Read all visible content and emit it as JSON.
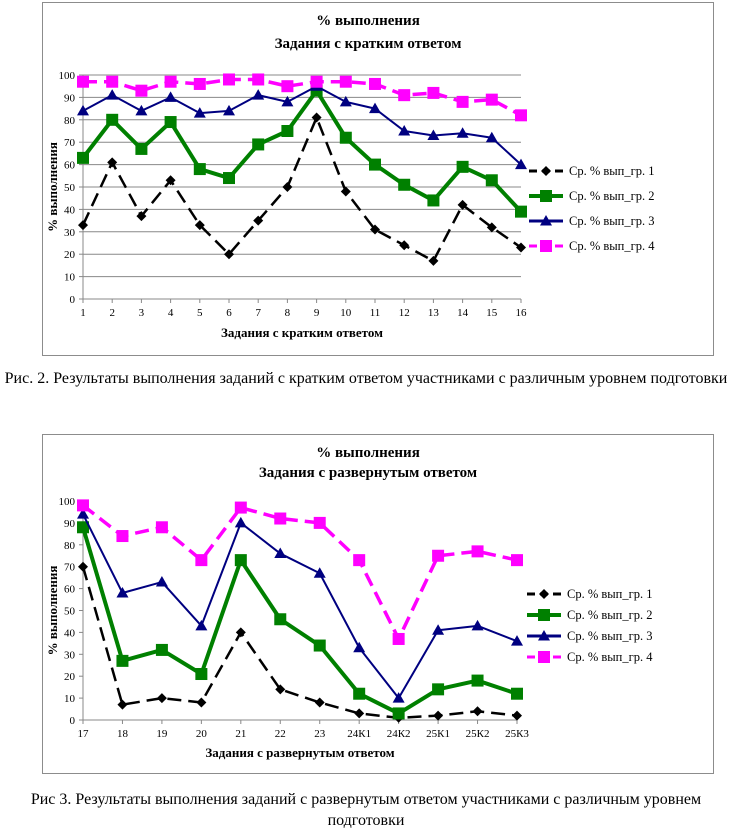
{
  "chart_data": [
    {
      "type": "line",
      "title": "% выполнения",
      "subtitle": "Задания с кратким ответом",
      "xlabel": "Задания с кратким ответом",
      "ylabel": "% выполнения",
      "ylim": [
        0,
        100
      ],
      "yticks": [
        "0",
        "10",
        "20",
        "30",
        "40",
        "50",
        "60",
        "70",
        "80",
        "90",
        "100"
      ],
      "categories": [
        "1",
        "2",
        "3",
        "4",
        "5",
        "6",
        "7",
        "8",
        "9",
        "10",
        "11",
        "12",
        "13",
        "14",
        "15",
        "16"
      ],
      "grid": true,
      "legend_position": "right",
      "series": [
        {
          "name": "Ср. % вып_гр. 1",
          "color": "#000000",
          "marker": "diamond",
          "dash": true,
          "values": [
            33,
            61,
            37,
            53,
            33,
            20,
            35,
            50,
            81,
            48,
            31,
            24,
            17,
            42,
            32,
            23
          ]
        },
        {
          "name": "Ср. % вып_гр. 2",
          "color": "#008000",
          "marker": "square",
          "dash": false,
          "values": [
            63,
            80,
            67,
            79,
            58,
            54,
            69,
            75,
            93,
            72,
            60,
            51,
            44,
            59,
            53,
            39
          ]
        },
        {
          "name": "Ср. % вып_гр. 3",
          "color": "#000080",
          "marker": "triangle",
          "dash": false,
          "values": [
            84,
            91,
            84,
            90,
            83,
            84,
            91,
            88,
            95,
            88,
            85,
            75,
            73,
            74,
            72,
            60
          ]
        },
        {
          "name": "Ср. % вып_гр. 4",
          "color": "#FF00FF",
          "marker": "square",
          "dash": true,
          "values": [
            97,
            97,
            93,
            97,
            96,
            98,
            98,
            95,
            97,
            97,
            96,
            91,
            92,
            88,
            89,
            82
          ]
        }
      ]
    },
    {
      "type": "line",
      "title": "% выполнения",
      "subtitle": "Задания с развернутым ответом",
      "xlabel": "Задания с развернутым ответом",
      "ylabel": "% выполнения",
      "ylim": [
        0,
        100
      ],
      "yticks": [
        "0",
        "10",
        "20",
        "30",
        "40",
        "50",
        "60",
        "70",
        "80",
        "90",
        "100"
      ],
      "categories": [
        "17",
        "18",
        "19",
        "20",
        "21",
        "22",
        "23",
        "24К1",
        "24К2",
        "25К1",
        "25К2",
        "25К3"
      ],
      "grid": false,
      "legend_position": "right",
      "series": [
        {
          "name": "Ср. % вып_гр. 1",
          "color": "#000000",
          "marker": "diamond",
          "dash": true,
          "values": [
            70,
            7,
            10,
            8,
            40,
            14,
            8,
            3,
            1,
            2,
            4,
            2
          ]
        },
        {
          "name": "Ср. % вып_гр. 2",
          "color": "#008000",
          "marker": "square",
          "dash": false,
          "values": [
            88,
            27,
            32,
            21,
            73,
            46,
            34,
            12,
            3,
            14,
            18,
            12
          ]
        },
        {
          "name": "Ср. % вып_гр. 3",
          "color": "#000080",
          "marker": "triangle",
          "dash": false,
          "values": [
            94,
            58,
            63,
            43,
            90,
            76,
            67,
            33,
            10,
            41,
            43,
            36
          ]
        },
        {
          "name": "Ср. % вып_гр. 4",
          "color": "#FF00FF",
          "marker": "square",
          "dash": true,
          "values": [
            98,
            84,
            88,
            73,
            97,
            92,
            90,
            73,
            37,
            75,
            77,
            73
          ]
        }
      ]
    }
  ],
  "captions": {
    "fig2": "Рис. 2. Результаты выполнения заданий с кратким ответом участниками с различным уровнем подготовки",
    "fig3": "Рис 3. Результаты выполнения заданий с развернутым ответом участниками с различным уровнем подготовки"
  }
}
